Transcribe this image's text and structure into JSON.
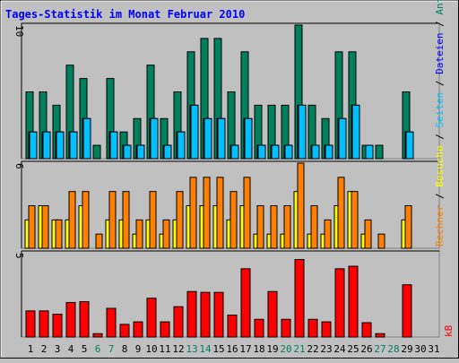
{
  "title": "Tages-Statistik im Monat Februar 2010",
  "right_legend": {
    "top": [
      {
        "text": "Anfragen",
        "color": "#00805c"
      },
      {
        "text": " / ",
        "color": "#000000"
      },
      {
        "text": "Dateien",
        "color": "#0000ff"
      },
      {
        "text": " / ",
        "color": "#000000"
      },
      {
        "text": "Seiten",
        "color": "#00c0ff"
      },
      {
        "text": " / ",
        "color": "#000000"
      },
      {
        "text": "Besuche",
        "color": "#ffff00"
      },
      {
        "text": " / ",
        "color": "#000000"
      },
      {
        "text": "Rechner",
        "color": "#ff8000"
      }
    ],
    "bottom": {
      "text": "kB",
      "color": "#ff0000"
    }
  },
  "colors": {
    "anfragen": "#00805c",
    "seiten": "#00c0ff",
    "dateien": "#0000ff",
    "besuche": "#ffff00",
    "rechner": "#ff8000",
    "kb": "#ff0000",
    "weekend_label": "#00805c",
    "plot_bg": "#c0c0c0"
  },
  "chart_data": [
    {
      "type": "bar",
      "panel": "top",
      "ymax_label": "10",
      "ylim": [
        0,
        10
      ],
      "x": [
        1,
        2,
        3,
        4,
        5,
        6,
        7,
        8,
        9,
        10,
        11,
        12,
        13,
        14,
        15,
        16,
        17,
        18,
        19,
        20,
        21,
        22,
        23,
        24,
        25,
        26,
        27,
        28,
        29,
        30,
        31
      ],
      "series": [
        {
          "name": "Anfragen",
          "values": [
            5,
            5,
            4,
            7,
            6,
            1,
            6,
            2,
            3,
            7,
            3,
            5,
            8,
            9,
            9,
            5,
            8,
            4,
            4,
            4,
            10,
            4,
            3,
            8,
            8,
            1,
            1,
            null,
            5,
            null,
            null
          ]
        },
        {
          "name": "Dateien",
          "values": [
            2,
            2,
            2,
            2,
            3,
            0,
            2,
            1,
            1,
            3,
            1,
            2,
            4,
            3,
            3,
            1,
            3,
            1,
            1,
            1,
            4,
            1,
            1,
            3,
            4,
            0,
            0,
            null,
            2,
            null,
            null
          ]
        },
        {
          "name": "Seiten",
          "values": [
            2,
            2,
            2,
            2,
            3,
            0,
            2,
            1,
            1,
            3,
            1,
            2,
            4,
            3,
            3,
            1,
            3,
            1,
            1,
            1,
            4,
            1,
            1,
            3,
            4,
            1,
            0,
            null,
            2,
            null,
            null
          ]
        }
      ]
    },
    {
      "type": "bar",
      "panel": "middle",
      "ymax_label": "6",
      "ylim": [
        0,
        6
      ],
      "x": [
        1,
        2,
        3,
        4,
        5,
        6,
        7,
        8,
        9,
        10,
        11,
        12,
        13,
        14,
        15,
        16,
        17,
        18,
        19,
        20,
        21,
        22,
        23,
        24,
        25,
        26,
        27,
        28,
        29,
        30,
        31
      ],
      "series": [
        {
          "name": "Besuche",
          "values": [
            2,
            3,
            2,
            2,
            3,
            0,
            2,
            2,
            1,
            2,
            1,
            2,
            3,
            3,
            3,
            2,
            3,
            1,
            1,
            1,
            4,
            1,
            1,
            3,
            4,
            1,
            0,
            null,
            2,
            null,
            null
          ]
        },
        {
          "name": "Rechner",
          "values": [
            3,
            3,
            2,
            4,
            4,
            1,
            4,
            4,
            2,
            4,
            2,
            4,
            5,
            5,
            5,
            4,
            5,
            3,
            3,
            3,
            6,
            3,
            2,
            5,
            4,
            2,
            1,
            null,
            3,
            null,
            null
          ]
        }
      ]
    },
    {
      "type": "bar",
      "panel": "bottom",
      "ymax_label": "5",
      "ylim": [
        0,
        5
      ],
      "x": [
        1,
        2,
        3,
        4,
        5,
        6,
        7,
        8,
        9,
        10,
        11,
        12,
        13,
        14,
        15,
        16,
        17,
        18,
        19,
        20,
        21,
        22,
        23,
        24,
        25,
        26,
        27,
        28,
        29,
        30,
        31
      ],
      "series": [
        {
          "name": "kB",
          "values": [
            1.55,
            1.55,
            1.35,
            2.05,
            2.1,
            0.2,
            1.7,
            0.75,
            0.9,
            2.3,
            0.9,
            1.8,
            2.7,
            2.65,
            2.65,
            1.3,
            4.05,
            1.05,
            2.7,
            1.05,
            4.6,
            1.05,
            0.9,
            4.05,
            4.2,
            0.85,
            0.2,
            null,
            3.1,
            null,
            null
          ]
        }
      ]
    }
  ],
  "x_labels": [
    "1",
    "2",
    "3",
    "4",
    "5",
    "6",
    "7",
    "8",
    "9",
    "10",
    "11",
    "12",
    "13",
    "14",
    "15",
    "16",
    "17",
    "18",
    "19",
    "20",
    "21",
    "22",
    "23",
    "24",
    "25",
    "26",
    "27",
    "28",
    "29",
    "30",
    "31"
  ],
  "weekend_days": [
    6,
    7,
    13,
    14,
    20,
    21,
    27,
    28
  ]
}
